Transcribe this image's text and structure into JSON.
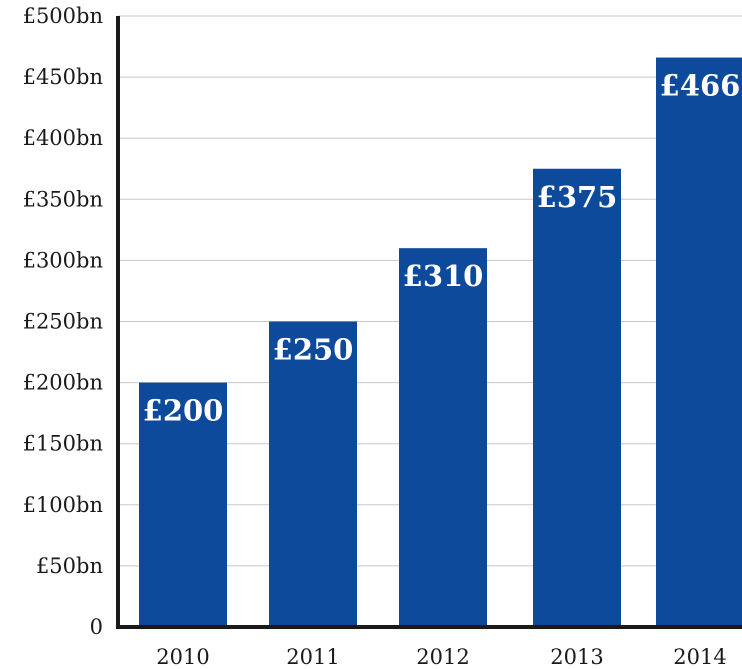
{
  "chart_data": {
    "type": "bar",
    "categories": [
      "2010",
      "2011",
      "2012",
      "2013",
      "2014"
    ],
    "values": [
      200,
      250,
      310,
      375,
      466
    ],
    "data_labels": [
      "£200",
      "£250",
      "£310",
      "£375",
      "£466"
    ],
    "title": "",
    "xlabel": "",
    "ylabel": "",
    "ylim": [
      0,
      500
    ],
    "y_ticks": [
      {
        "value": 0,
        "label": "0"
      },
      {
        "value": 50,
        "label": "£50bn"
      },
      {
        "value": 100,
        "label": "£100bn"
      },
      {
        "value": 150,
        "label": "£150bn"
      },
      {
        "value": 200,
        "label": "£200bn"
      },
      {
        "value": 250,
        "label": "£250bn"
      },
      {
        "value": 300,
        "label": "£300bn"
      },
      {
        "value": 350,
        "label": "£350bn"
      },
      {
        "value": 400,
        "label": "£400bn"
      },
      {
        "value": 450,
        "label": "£450bn"
      },
      {
        "value": 500,
        "label": "£500bn"
      }
    ],
    "grid": true,
    "legend": "none",
    "colors": {
      "bar": "#0d4a9c",
      "grid": "#c8c8c8",
      "axis": "#1a1a1a",
      "data_label": "#ffffff"
    }
  }
}
